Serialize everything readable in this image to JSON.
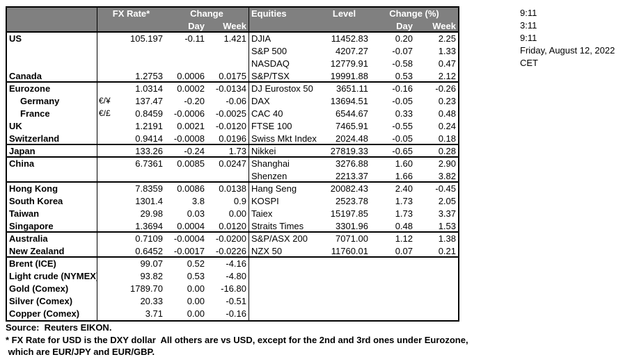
{
  "side_info": {
    "lines": [
      "9:11",
      "3:11",
      "9:11",
      "Friday, August 12, 2022",
      "CET"
    ]
  },
  "header": {
    "fx": {
      "rate": "FX Rate*",
      "change": "Change",
      "day": "Day",
      "week": "Week"
    },
    "equities": {
      "title": "Equities",
      "level": "Level",
      "change": "Change (%)",
      "day": "Day",
      "week": "Week"
    }
  },
  "rows": [
    {
      "fx": {
        "name": "US",
        "pair": "",
        "rate": "105.197",
        "day": "-0.11",
        "week": "1.421",
        "indent": false
      },
      "eq": {
        "name": "DJIA",
        "level": "11452.83",
        "day": "0.20",
        "week": "2.25"
      },
      "sep": false
    },
    {
      "fx": {
        "name": "",
        "pair": "",
        "rate": "",
        "day": "",
        "week": "",
        "indent": false
      },
      "eq": {
        "name": "S&P 500",
        "level": "4207.27",
        "day": "-0.07",
        "week": "1.33"
      },
      "sep": false
    },
    {
      "fx": {
        "name": "",
        "pair": "",
        "rate": "",
        "day": "",
        "week": "",
        "indent": false
      },
      "eq": {
        "name": "NASDAQ",
        "level": "12779.91",
        "day": "-0.58",
        "week": "0.47"
      },
      "sep": false
    },
    {
      "fx": {
        "name": "Canada",
        "pair": "",
        "rate": "1.2753",
        "day": "0.0006",
        "week": "0.0175",
        "indent": false
      },
      "eq": {
        "name": "S&P/TSX",
        "level": "19991.88",
        "day": "0.53",
        "week": "2.12"
      },
      "sep": true
    },
    {
      "fx": {
        "name": "Eurozone",
        "pair": "",
        "rate": "1.0314",
        "day": "0.0002",
        "week": "-0.0134",
        "indent": false
      },
      "eq": {
        "name": "DJ Eurostox 50",
        "level": "3651.11",
        "day": "-0.16",
        "week": "-0.26"
      },
      "sep": false
    },
    {
      "fx": {
        "name": "Germany",
        "pair": "€/¥",
        "rate": "137.47",
        "day": "-0.20",
        "week": "-0.06",
        "indent": true
      },
      "eq": {
        "name": "DAX",
        "level": "13694.51",
        "day": "-0.05",
        "week": "0.23"
      },
      "sep": false
    },
    {
      "fx": {
        "name": "France",
        "pair": "€/£",
        "rate": "0.8459",
        "day": "-0.0006",
        "week": "-0.0025",
        "indent": true
      },
      "eq": {
        "name": "CAC 40",
        "level": "6544.67",
        "day": "0.33",
        "week": "0.48"
      },
      "sep": false
    },
    {
      "fx": {
        "name": "UK",
        "pair": "",
        "rate": "1.2191",
        "day": "0.0021",
        "week": "-0.0120",
        "indent": false
      },
      "eq": {
        "name": "FTSE 100",
        "level": "7465.91",
        "day": "-0.55",
        "week": "0.24"
      },
      "sep": false
    },
    {
      "fx": {
        "name": "Switzerland",
        "pair": "",
        "rate": "0.9414",
        "day": "-0.0008",
        "week": "0.0196",
        "indent": false
      },
      "eq": {
        "name": "Swiss Mkt Index",
        "level": "2024.48",
        "day": "-0.05",
        "week": "0.18"
      },
      "sep": true
    },
    {
      "fx": {
        "name": "Japan",
        "pair": "",
        "rate": "133.26",
        "day": "-0.24",
        "week": "1.73",
        "indent": false
      },
      "eq": {
        "name": "Nikkei",
        "level": "27819.33",
        "day": "-0.65",
        "week": "0.28"
      },
      "sep": true
    },
    {
      "fx": {
        "name": "China",
        "pair": "",
        "rate": "6.7361",
        "day": "0.0085",
        "week": "0.0247",
        "indent": false
      },
      "eq": {
        "name": "Shanghai",
        "level": "3276.88",
        "day": "1.60",
        "week": "2.90"
      },
      "sep": false
    },
    {
      "fx": {
        "name": "",
        "pair": "",
        "rate": "",
        "day": "",
        "week": "",
        "indent": false
      },
      "eq": {
        "name": "Shenzen",
        "level": "2213.37",
        "day": "1.66",
        "week": "3.82"
      },
      "sep": true
    },
    {
      "fx": {
        "name": "Hong Kong",
        "pair": "",
        "rate": "7.8359",
        "day": "0.0086",
        "week": "0.0138",
        "indent": false
      },
      "eq": {
        "name": "Hang Seng",
        "level": "20082.43",
        "day": "2.40",
        "week": "-0.45"
      },
      "sep": false
    },
    {
      "fx": {
        "name": "South Korea",
        "pair": "",
        "rate": "1301.4",
        "day": "3.8",
        "week": "0.9",
        "indent": false
      },
      "eq": {
        "name": "KOSPI",
        "level": "2523.78",
        "day": "1.73",
        "week": "2.05"
      },
      "sep": false
    },
    {
      "fx": {
        "name": "Taiwan",
        "pair": "",
        "rate": "29.98",
        "day": "0.03",
        "week": "0.00",
        "indent": false
      },
      "eq": {
        "name": "Taiex",
        "level": "15197.85",
        "day": "1.73",
        "week": "3.37"
      },
      "sep": false
    },
    {
      "fx": {
        "name": "Singapore",
        "pair": "",
        "rate": "1.3694",
        "day": "0.0004",
        "week": "0.0120",
        "indent": false
      },
      "eq": {
        "name": "Straits Times",
        "level": "3301.96",
        "day": "0.48",
        "week": "1.53"
      },
      "sep": true
    },
    {
      "fx": {
        "name": "Australia",
        "pair": "",
        "rate": "0.7109",
        "day": "-0.0004",
        "week": "-0.0200",
        "indent": false
      },
      "eq": {
        "name": "S&P/ASX  200",
        "level": "7071.00",
        "day": "1.12",
        "week": "1.38"
      },
      "sep": false
    },
    {
      "fx": {
        "name": "New Zealand",
        "pair": "",
        "rate": "0.6452",
        "day": "-0.0017",
        "week": "-0.0226",
        "indent": false
      },
      "eq": {
        "name": "NZX 50",
        "level": "11760.01",
        "day": "0.07",
        "week": "0.21"
      },
      "sep": true
    },
    {
      "fx": {
        "name": "Brent (ICE)",
        "pair": "",
        "rate": "99.07",
        "day": "0.52",
        "week": "-4.16",
        "indent": false
      },
      "eq": {
        "name": "",
        "level": "",
        "day": "",
        "week": ""
      },
      "sep": false
    },
    {
      "fx": {
        "name": "Light crude (NYMEX)",
        "pair": "",
        "rate": "93.82",
        "day": "0.53",
        "week": "-4.80",
        "indent": false
      },
      "eq": {
        "name": "",
        "level": "",
        "day": "",
        "week": ""
      },
      "sep": false
    },
    {
      "fx": {
        "name": "Gold (Comex)",
        "pair": "",
        "rate": "1789.70",
        "day": "0.00",
        "week": "-16.80",
        "indent": false
      },
      "eq": {
        "name": "",
        "level": "",
        "day": "",
        "week": ""
      },
      "sep": false
    },
    {
      "fx": {
        "name": "Silver (Comex)",
        "pair": "",
        "rate": "20.33",
        "day": "0.00",
        "week": "-0.51",
        "indent": false
      },
      "eq": {
        "name": "",
        "level": "",
        "day": "",
        "week": ""
      },
      "sep": false
    },
    {
      "fx": {
        "name": "Copper (Comex)",
        "pair": "",
        "rate": "3.71",
        "day": "0.00",
        "week": "-0.16",
        "indent": false
      },
      "eq": {
        "name": "",
        "level": "",
        "day": "",
        "week": ""
      },
      "sep": false
    }
  ],
  "footer": {
    "lines": [
      "Source:  Reuters EIKON.",
      "* FX Rate for USD is the DXY dollar  All others are vs USD, except for the 2nd and 3rd ones under Eurozone,",
      " which are EUR/JPY and EUR/GBP."
    ]
  },
  "colors": {
    "header_bg": "#808080",
    "header_text": "#ffffff",
    "border": "#000000"
  }
}
